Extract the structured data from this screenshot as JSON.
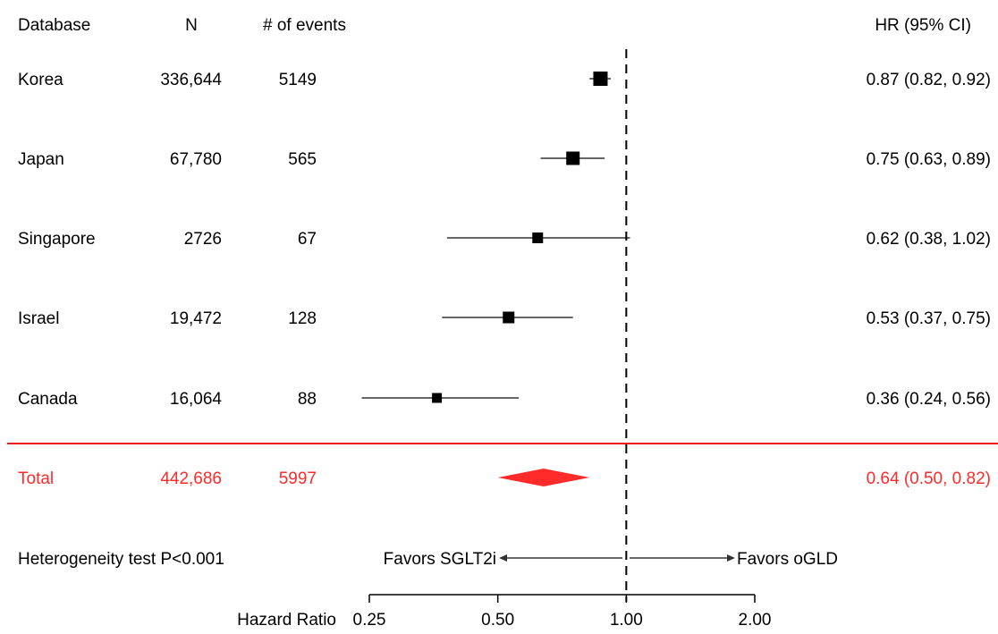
{
  "chart_data": {
    "type": "forest",
    "columns": {
      "database": "Database",
      "n": "N",
      "events": "# of events",
      "hr": "HR (95% CI)"
    },
    "rows": [
      {
        "database": "Korea",
        "n": "336,644",
        "events": "5149",
        "hr": 0.87,
        "lo": 0.82,
        "hi": 0.92,
        "label": "0.87 (0.82, 0.92)"
      },
      {
        "database": "Japan",
        "n": "67,780",
        "events": "565",
        "hr": 0.75,
        "lo": 0.63,
        "hi": 0.89,
        "label": "0.75 (0.63, 0.89)"
      },
      {
        "database": "Singapore",
        "n": "2726",
        "events": "67",
        "hr": 0.62,
        "lo": 0.38,
        "hi": 1.02,
        "label": "0.62 (0.38, 1.02)"
      },
      {
        "database": "Israel",
        "n": "19,472",
        "events": "128",
        "hr": 0.53,
        "lo": 0.37,
        "hi": 0.75,
        "label": "0.53 (0.37, 0.75)"
      },
      {
        "database": "Canada",
        "n": "16,064",
        "events": "88",
        "hr": 0.36,
        "lo": 0.24,
        "hi": 0.56,
        "label": "0.36 (0.24, 0.56)"
      }
    ],
    "total": {
      "database": "Total",
      "n": "442,686",
      "events": "5997",
      "hr": 0.64,
      "lo": 0.5,
      "hi": 0.82,
      "label": "0.64 (0.50, 0.82)"
    },
    "heterogeneity": "Heterogeneity test P<0.001",
    "favors_left": "Favors SGLT2i",
    "favors_right": "Favors oGLD",
    "xlabel": "Hazard Ratio",
    "xscale": "log",
    "xlim": [
      0.25,
      2.0
    ],
    "xticks": [
      0.25,
      0.5,
      1.0,
      2.0
    ],
    "xtick_labels": [
      "0.25",
      "0.50",
      "1.00",
      "2.00"
    ],
    "reference_line": 1.0,
    "colors": {
      "total": "#ff2a2a",
      "separator": "#e81c1c",
      "markers": "#000000",
      "ci": "#333333"
    }
  }
}
